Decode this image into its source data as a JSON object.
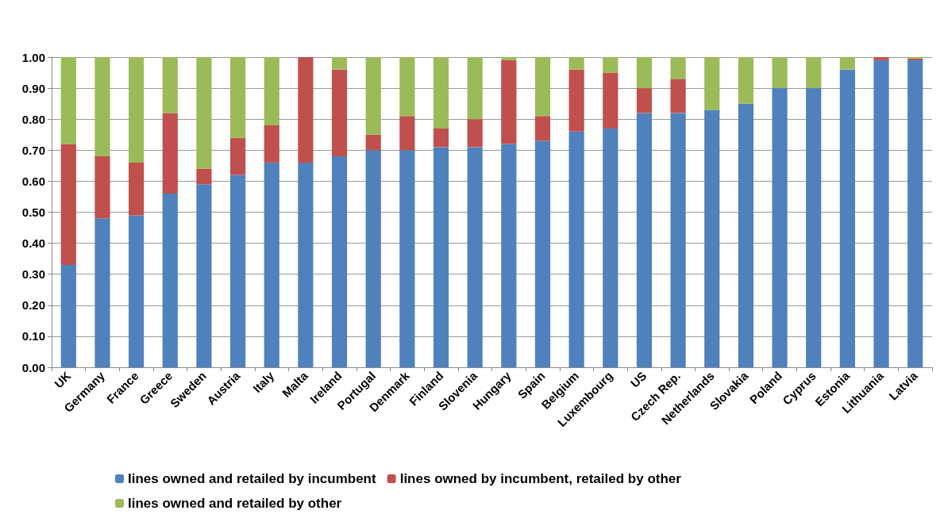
{
  "chart_data": {
    "type": "bar",
    "stacked": true,
    "categories": [
      "UK",
      "Germany",
      "France",
      "Greece",
      "Sweden",
      "Austria",
      "Italy",
      "Malta",
      "Ireland",
      "Portugal",
      "Denmark",
      "Finland",
      "Slovenia",
      "Hungary",
      "Spain",
      "Belgium",
      "Luxembourg",
      "US",
      "Czech Rep.",
      "Netherlands",
      "Slovakia",
      "Poland",
      "Cyprus",
      "Estonia",
      "Lithuania",
      "Latvia"
    ],
    "series": [
      {
        "name": "lines owned and retailed by incumbent",
        "color": "#4f81bd",
        "values": [
          0.33,
          0.48,
          0.49,
          0.56,
          0.59,
          0.62,
          0.66,
          0.66,
          0.68,
          0.7,
          0.7,
          0.71,
          0.71,
          0.72,
          0.73,
          0.76,
          0.77,
          0.82,
          0.82,
          0.83,
          0.85,
          0.9,
          0.9,
          0.96,
          0.99,
          0.99
        ]
      },
      {
        "name": "lines owned by incumbent, retailed by other",
        "color": "#c0504d",
        "values": [
          0.39,
          0.2,
          0.17,
          0.26,
          0.05,
          0.12,
          0.12,
          0.34,
          0.28,
          0.05,
          0.11,
          0.06,
          0.09,
          0.27,
          0.08,
          0.2,
          0.18,
          0.08,
          0.11,
          0,
          0,
          0,
          0,
          0,
          0.01,
          0.005
        ]
      },
      {
        "name": "lines owned and retailed by other",
        "color": "#9bbb59",
        "values": [
          0.28,
          0.32,
          0.34,
          0.18,
          0.36,
          0.26,
          0.22,
          0,
          0.04,
          0.25,
          0.19,
          0.23,
          0.2,
          0.01,
          0.19,
          0.04,
          0.05,
          0.1,
          0.07,
          0.17,
          0.15,
          0.1,
          0.1,
          0.04,
          0,
          0.005
        ]
      }
    ],
    "ylim": [
      0,
      1
    ],
    "yticks": [
      {
        "value": 0,
        "label": "0.00"
      },
      {
        "value": 0.1,
        "label": "0.10"
      },
      {
        "value": 0.2,
        "label": "0.20"
      },
      {
        "value": 0.3,
        "label": "0.30"
      },
      {
        "value": 0.4,
        "label": "0.40"
      },
      {
        "value": 0.5,
        "label": "0.50"
      },
      {
        "value": 0.6,
        "label": "0.60"
      },
      {
        "value": 0.7,
        "label": "0.70"
      },
      {
        "value": 0.8,
        "label": "0.80"
      },
      {
        "value": 0.9,
        "label": "0.90"
      },
      {
        "value": 1,
        "label": "1.00"
      }
    ],
    "grid": "y",
    "legend": "bottom"
  }
}
